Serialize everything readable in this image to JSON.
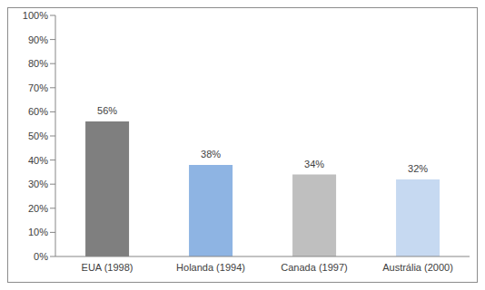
{
  "chart_data": {
    "type": "bar",
    "categories": [
      "EUA (1998)",
      "Holanda (1994)",
      "Canada (1997)",
      "Austrália (2000)"
    ],
    "values": [
      56,
      38,
      34,
      32
    ],
    "value_labels": [
      "56%",
      "38%",
      "34%",
      "32%"
    ],
    "colors": [
      "#7f7f7f",
      "#8eb4e3",
      "#bfbfbf",
      "#c6d9f1"
    ],
    "ylim": [
      0,
      100
    ],
    "yticks": [
      {
        "value": 0,
        "label": "0%"
      },
      {
        "value": 10,
        "label": "10%"
      },
      {
        "value": 20,
        "label": "20%"
      },
      {
        "value": 30,
        "label": "30%"
      },
      {
        "value": 40,
        "label": "40%"
      },
      {
        "value": 50,
        "label": "50%"
      },
      {
        "value": 60,
        "label": "60%"
      },
      {
        "value": 70,
        "label": "70%"
      },
      {
        "value": 80,
        "label": "80%"
      },
      {
        "value": 90,
        "label": "90%"
      },
      {
        "value": 100,
        "label": "100%"
      }
    ],
    "grid": false,
    "data_labels": true
  }
}
